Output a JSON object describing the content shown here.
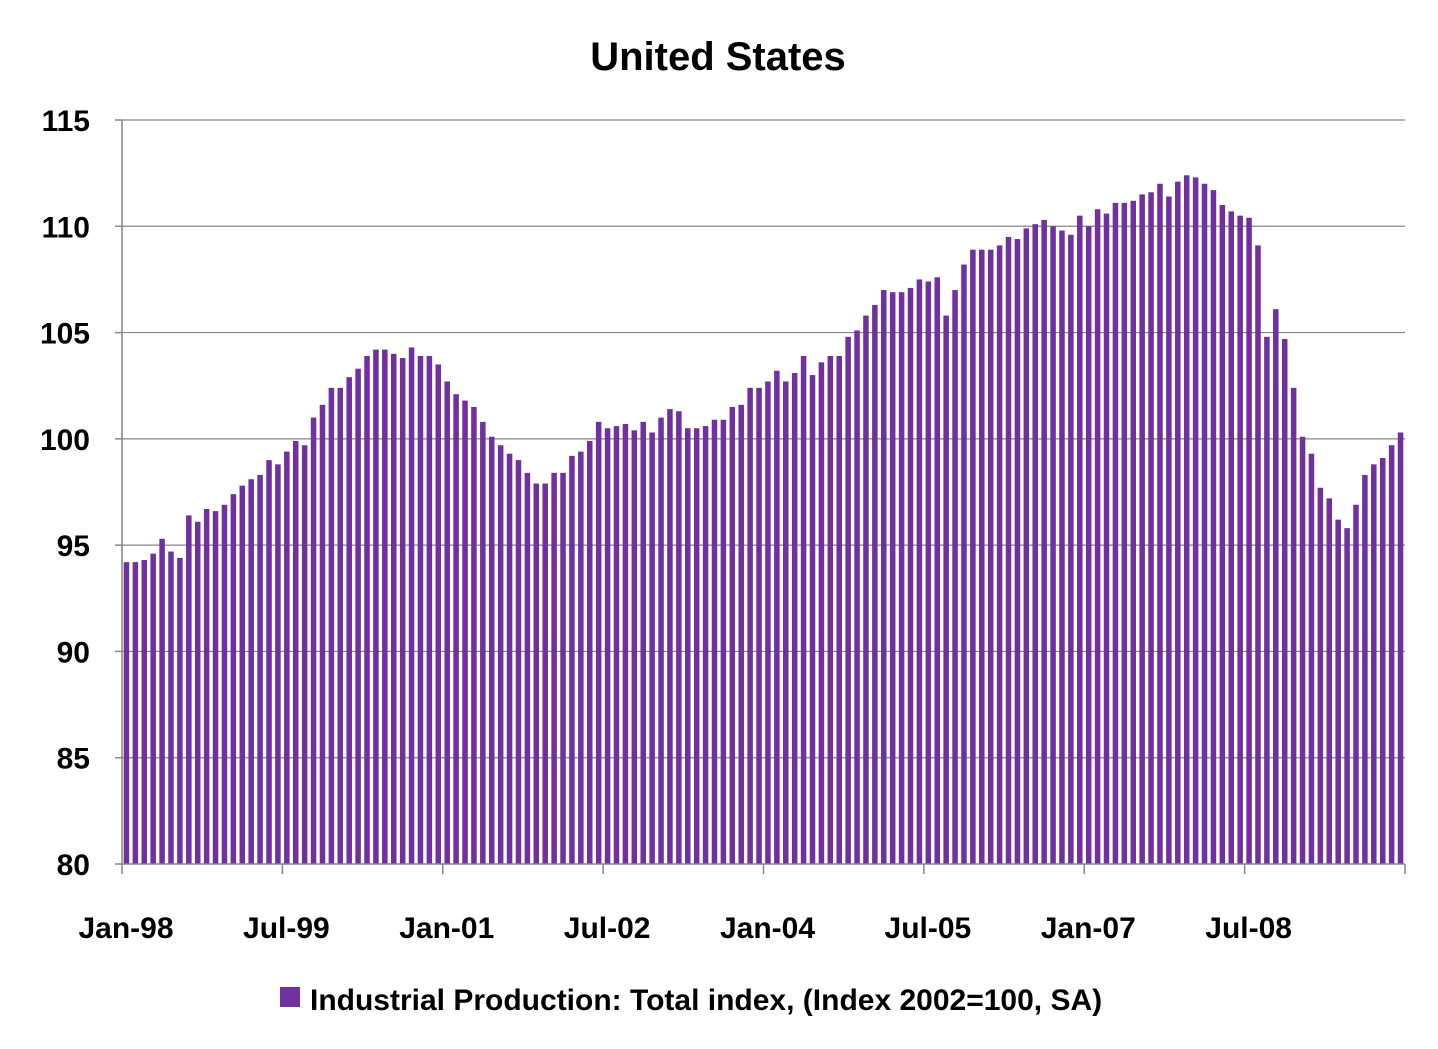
{
  "chart_data": {
    "type": "bar",
    "title": "United States",
    "xlabel": "",
    "ylabel": "",
    "ylim": [
      80,
      115
    ],
    "yticks": [
      "80",
      "85",
      "90",
      "95",
      "100",
      "105",
      "110",
      "115"
    ],
    "grid": true,
    "legend_position": "bottom",
    "bar_color": "#7030A0",
    "x_tick_labels": [
      "Jan-98",
      "Jul-99",
      "Jan-01",
      "Jul-02",
      "Jan-04",
      "Jul-05",
      "Jan-07",
      "Jul-08"
    ],
    "series": [
      {
        "name": "Industrial Production: Total index, (Index 2002=100, SA)",
        "values": [
          94.2,
          94.2,
          94.3,
          94.6,
          95.3,
          94.7,
          94.4,
          96.4,
          96.1,
          96.7,
          96.6,
          96.9,
          97.4,
          97.8,
          98.1,
          98.3,
          99.0,
          98.8,
          99.4,
          99.9,
          99.7,
          101.0,
          101.6,
          102.4,
          102.4,
          102.9,
          103.3,
          103.9,
          104.2,
          104.2,
          104.0,
          103.8,
          104.3,
          103.9,
          103.9,
          103.5,
          102.7,
          102.1,
          101.8,
          101.5,
          100.8,
          100.1,
          99.7,
          99.3,
          99.0,
          98.4,
          97.9,
          97.9,
          98.4,
          98.4,
          99.2,
          99.4,
          99.9,
          100.8,
          100.5,
          100.6,
          100.7,
          100.4,
          100.8,
          100.3,
          101.0,
          101.4,
          101.3,
          100.5,
          100.5,
          100.6,
          100.9,
          100.9,
          101.5,
          101.6,
          102.4,
          102.4,
          102.7,
          103.2,
          102.7,
          103.1,
          103.9,
          103.0,
          103.6,
          103.9,
          103.9,
          104.8,
          105.1,
          105.8,
          106.3,
          107.0,
          106.9,
          106.9,
          107.1,
          107.5,
          107.4,
          107.6,
          105.8,
          107.0,
          108.2,
          108.9,
          108.9,
          108.9,
          109.1,
          109.5,
          109.4,
          109.9,
          110.1,
          110.3,
          110.0,
          109.8,
          109.6,
          110.5,
          110.0,
          110.8,
          110.6,
          111.1,
          111.1,
          111.2,
          111.5,
          111.6,
          112.0,
          111.4,
          112.1,
          112.4,
          112.3,
          112.0,
          111.7,
          111.0,
          110.7,
          110.5,
          110.4,
          109.1,
          104.8,
          106.1,
          104.7,
          102.4,
          100.1,
          99.3,
          97.7,
          97.2,
          96.2,
          95.8,
          96.9,
          98.3,
          98.8,
          99.1,
          99.7,
          100.3
        ]
      }
    ]
  }
}
